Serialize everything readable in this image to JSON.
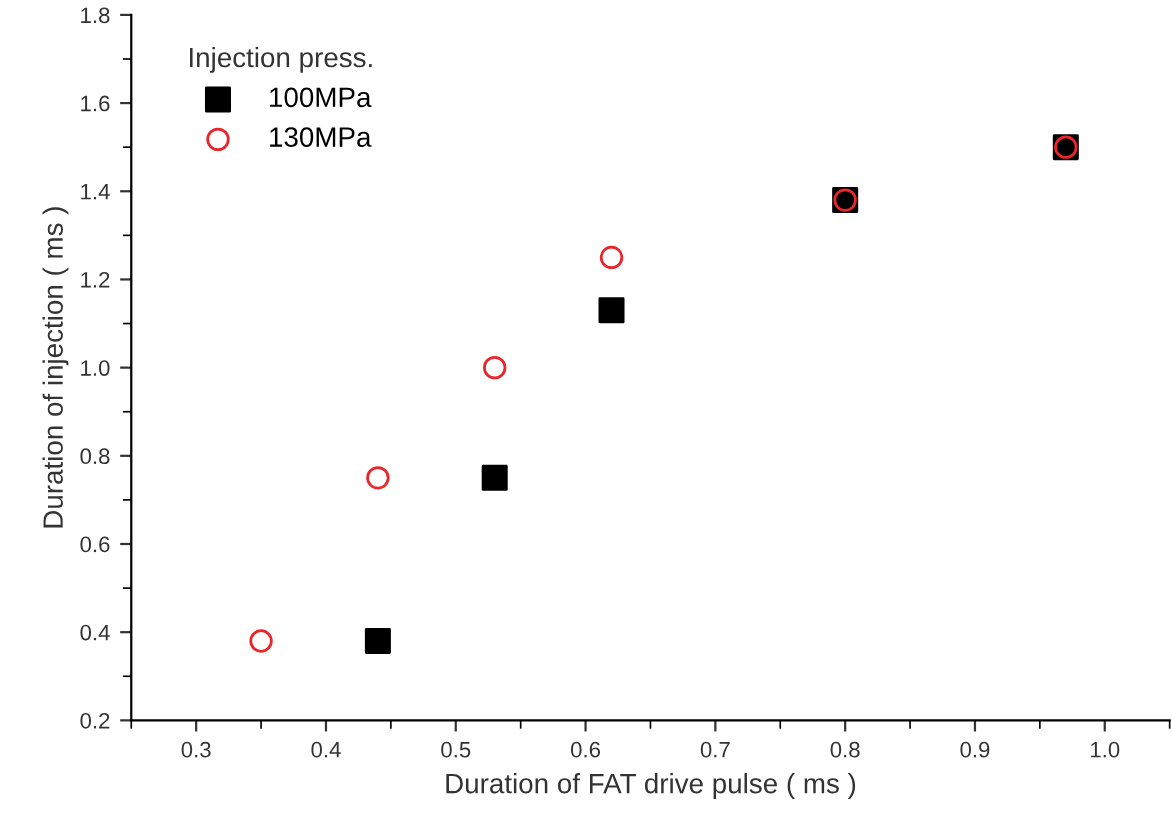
{
  "chart_data": {
    "type": "scatter",
    "xlabel": "Duration of FAT drive pulse ( ms )",
    "ylabel": "Duration of injection ( ms )",
    "legend_title": "Injection press.",
    "series": [
      {
        "name": "100MPa",
        "color": "#000000",
        "marker": "square",
        "x": [
          0.44,
          0.53,
          0.62,
          0.8,
          0.97
        ],
        "values": [
          0.38,
          0.75,
          1.13,
          1.38,
          1.5
        ]
      },
      {
        "name": "130MPa",
        "color": "#e8262b",
        "marker": "circle",
        "x": [
          0.35,
          0.44,
          0.53,
          0.62,
          0.8,
          0.97
        ],
        "values": [
          0.38,
          0.75,
          1.0,
          1.25,
          1.38,
          1.5
        ]
      }
    ],
    "xlim": [
      0.25,
      1.05
    ],
    "ylim": [
      0.2,
      1.8
    ],
    "xticks": [
      0.3,
      0.4,
      0.5,
      0.6,
      0.7,
      0.8,
      0.9,
      {
        "value": 1.0,
        "label": "1.0"
      }
    ],
    "yticks": [
      0.2,
      0.4,
      0.6,
      0.8,
      {
        "value": 1.0,
        "label": "1.0"
      },
      1.2,
      1.4,
      1.6,
      1.8
    ],
    "grid": false,
    "legend": "top left"
  }
}
